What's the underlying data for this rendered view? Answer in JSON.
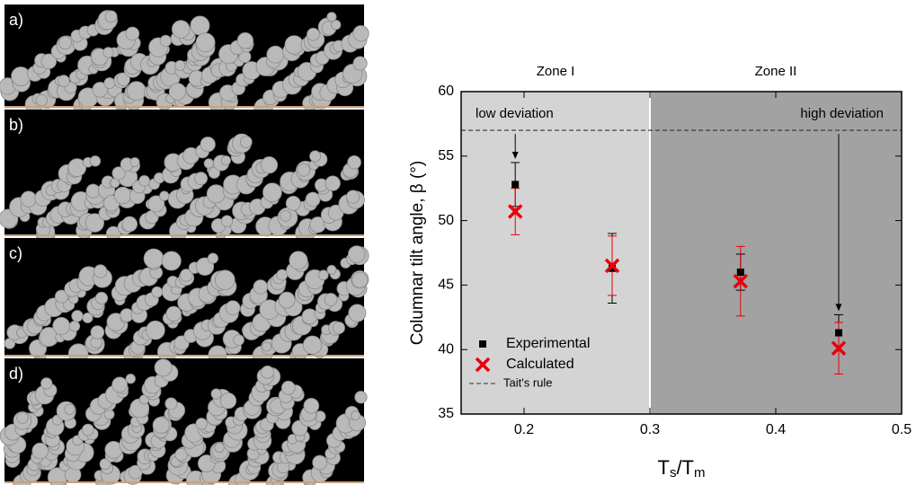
{
  "panels": {
    "labels": [
      "a)",
      "b)",
      "c)",
      "d)"
    ]
  },
  "chart_data": {
    "type": "scatter",
    "zones": [
      {
        "label": "Zone I",
        "range": [
          0.15,
          0.3
        ],
        "color": "#d4d4d4"
      },
      {
        "label": "Zone II",
        "range": [
          0.3,
          0.5
        ],
        "color": "#a2a2a2"
      }
    ],
    "y_label": "Columnar tilt angle, β (°)",
    "x_label_parts": [
      "T",
      "s",
      "/T",
      "m"
    ],
    "xlim": [
      0.15,
      0.5
    ],
    "xticks": [
      0.2,
      0.3,
      0.4,
      0.5
    ],
    "ylim": [
      35,
      60
    ],
    "yticks": [
      35,
      40,
      45,
      50,
      55,
      60
    ],
    "annotations": [
      {
        "text": "low deviation",
        "x": 0.193
      },
      {
        "text": "high deviation",
        "x": 0.45
      }
    ],
    "reference_lines": [
      {
        "name": "Tait's rule",
        "value": 57,
        "style": "dashed",
        "color": "#333333"
      }
    ],
    "series": [
      {
        "name": "Experimental",
        "marker": "square",
        "color": "#000000",
        "x": [
          0.193,
          0.27,
          0.372,
          0.45
        ],
        "values": [
          52.8,
          46.3,
          46.0,
          41.3
        ],
        "errors": [
          1.7,
          2.7,
          1.4,
          1.4
        ]
      },
      {
        "name": "Calculated",
        "marker": "x",
        "color": "#e8000b",
        "x": [
          0.193,
          0.27,
          0.372,
          0.45
        ],
        "values": [
          50.7,
          46.5,
          45.3,
          40.1
        ],
        "errors": [
          1.8,
          2.3,
          2.7,
          2.0
        ]
      }
    ],
    "legend": "lower left"
  }
}
